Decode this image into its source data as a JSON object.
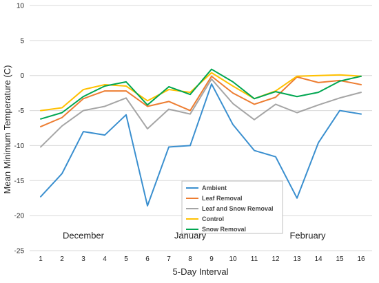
{
  "chart_data": {
    "type": "line",
    "title": "",
    "xlabel": "5-Day Interval",
    "ylabel": "Mean Minimum Temperature (C)",
    "x": [
      1,
      2,
      3,
      4,
      5,
      6,
      7,
      8,
      9,
      10,
      11,
      12,
      13,
      14,
      15,
      16
    ],
    "ylim": [
      -25,
      10
    ],
    "yticks": [
      10,
      5,
      0,
      -5,
      -10,
      -15,
      -20,
      -25
    ],
    "grid": "horizontal",
    "legend_position": "bottom-center",
    "month_labels": [
      {
        "label": "December",
        "x": 3
      },
      {
        "label": "January",
        "x": 8
      },
      {
        "label": "February",
        "x": 13.5
      }
    ],
    "series": [
      {
        "name": "Ambient",
        "color": "#3a8fcf",
        "values": [
          -17.3,
          -14.0,
          -8.0,
          -8.5,
          -5.6,
          -18.6,
          -10.2,
          -10.0,
          -1.2,
          -7.0,
          -10.7,
          -11.6,
          -17.5,
          -9.6,
          -5.0,
          -5.5
        ]
      },
      {
        "name": "Leaf Removal",
        "color": "#ed7d31",
        "values": [
          -7.3,
          -6.0,
          -3.3,
          -2.2,
          -2.2,
          -4.4,
          -3.7,
          -5.0,
          -0.1,
          -2.5,
          -4.1,
          -3.1,
          -0.2,
          -1.0,
          -0.7,
          -1.3
        ]
      },
      {
        "name": "Leaf and Snow Removal",
        "color": "#a5a5a5",
        "values": [
          -10.2,
          -7.2,
          -5.0,
          -4.4,
          -3.2,
          -7.6,
          -4.8,
          -5.5,
          -0.5,
          -4.0,
          -6.3,
          -4.1,
          -5.3,
          -4.2,
          -3.2,
          -2.4
        ]
      },
      {
        "name": "Control",
        "color": "#ffc000",
        "values": [
          -5.0,
          -4.6,
          -2.0,
          -1.3,
          -1.5,
          -3.6,
          -2.0,
          -2.4,
          0.4,
          -1.5,
          -3.3,
          -2.2,
          -0.1,
          0.0,
          0.1,
          -0.1
        ]
      },
      {
        "name": "Snow Removal",
        "color": "#00a651",
        "values": [
          -6.2,
          -5.3,
          -3.0,
          -1.5,
          -0.9,
          -4.2,
          -1.6,
          -2.7,
          0.9,
          -0.9,
          -3.3,
          -2.3,
          -3.0,
          -2.4,
          -0.8,
          -0.1
        ]
      }
    ]
  }
}
